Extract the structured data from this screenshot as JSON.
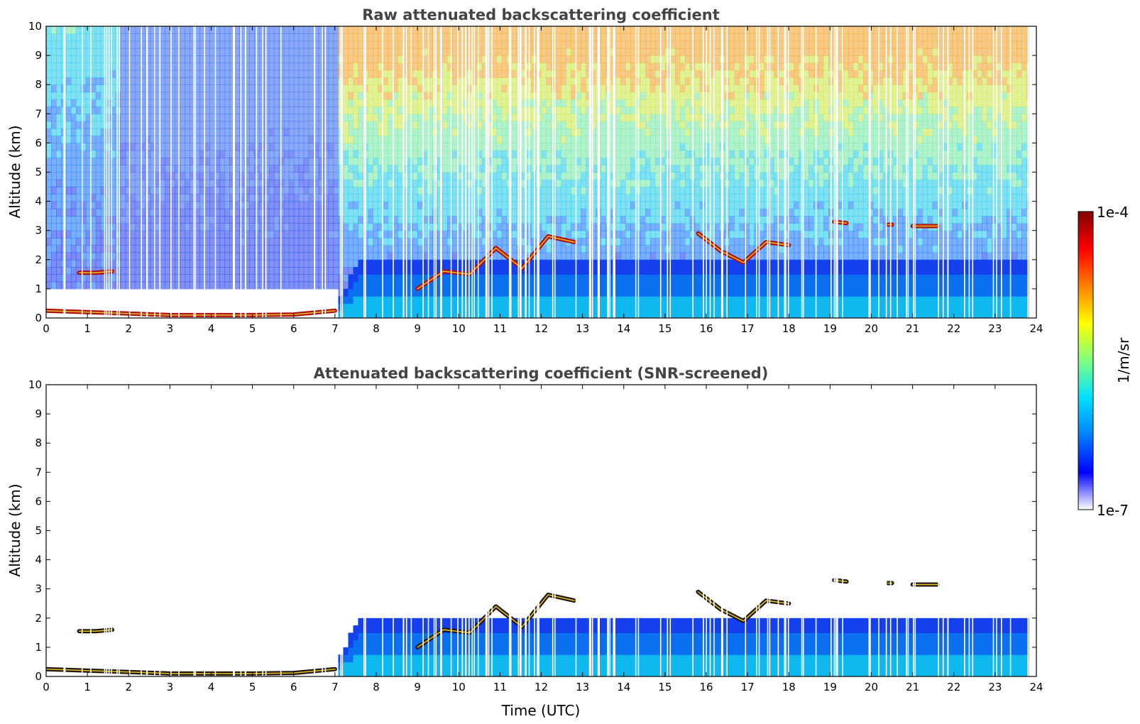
{
  "chart_data": [
    {
      "type": "heatmap",
      "title": "Raw attenuated backscattering coefficient",
      "xlabel": "",
      "ylabel": "Altitude (km)",
      "xlim": [
        0,
        24
      ],
      "ylim": [
        0,
        10
      ],
      "x_ticks": [
        "0",
        "1",
        "2",
        "3",
        "4",
        "5",
        "6",
        "7",
        "8",
        "9",
        "10",
        "11",
        "12",
        "13",
        "14",
        "15",
        "16",
        "17",
        "18",
        "19",
        "20",
        "21",
        "22",
        "23",
        "24"
      ],
      "y_ticks": [
        "0",
        "1",
        "2",
        "3",
        "4",
        "5",
        "6",
        "7",
        "8",
        "9",
        "10"
      ],
      "screened": false,
      "cloud_layers": [
        {
          "t0": 0.0,
          "t1": 7.0,
          "alt": [
            0.25,
            0.2,
            0.15,
            0.1,
            0.1,
            0.1,
            0.12,
            0.25
          ]
        },
        {
          "t0": 0.8,
          "t1": 1.6,
          "alt": [
            1.55,
            1.55,
            1.6
          ]
        },
        {
          "t0": 9.0,
          "t1": 12.8,
          "alt": [
            1.0,
            1.6,
            1.5,
            2.4,
            1.7,
            2.8,
            2.6
          ]
        },
        {
          "t0": 15.8,
          "t1": 18.0,
          "alt": [
            2.9,
            2.3,
            1.9,
            2.6,
            2.5
          ]
        },
        {
          "t0": 21.0,
          "t1": 21.6,
          "alt": [
            3.15,
            3.15
          ]
        },
        {
          "t0": 19.1,
          "t1": 19.4,
          "alt": [
            3.3,
            3.25
          ]
        },
        {
          "t0": 20.4,
          "t1": 20.5,
          "alt": [
            3.2,
            3.2
          ]
        }
      ],
      "boundary_layer_top": {
        "t": [
          0,
          7,
          7.5,
          9,
          12,
          15,
          18,
          21,
          23.8
        ],
        "alt": [
          0.3,
          0.3,
          1.8,
          1.8,
          1.9,
          1.9,
          2.0,
          1.9,
          1.9
        ]
      }
    },
    {
      "type": "heatmap",
      "title": "Attenuated backscattering coefficient (SNR-screened)",
      "xlabel": "Time (UTC)",
      "ylabel": "Altitude (km)",
      "xlim": [
        0,
        24
      ],
      "ylim": [
        0,
        10
      ],
      "x_ticks": [
        "0",
        "1",
        "2",
        "3",
        "4",
        "5",
        "6",
        "7",
        "8",
        "9",
        "10",
        "11",
        "12",
        "13",
        "14",
        "15",
        "16",
        "17",
        "18",
        "19",
        "20",
        "21",
        "22",
        "23",
        "24"
      ],
      "y_ticks": [
        "0",
        "1",
        "2",
        "3",
        "4",
        "5",
        "6",
        "7",
        "8",
        "9",
        "10"
      ],
      "screened": true
    }
  ],
  "colorbar": {
    "label": "1/m/sr",
    "max_label": "1e-4",
    "min_label": "1e-7",
    "scale": "log",
    "range": [
      1e-07,
      0.0001
    ],
    "colormap": [
      "#ffffff",
      "#0000ff",
      "#0080ff",
      "#00e0ff",
      "#80ff80",
      "#ffff00",
      "#ff8000",
      "#ff0000",
      "#800000"
    ]
  }
}
